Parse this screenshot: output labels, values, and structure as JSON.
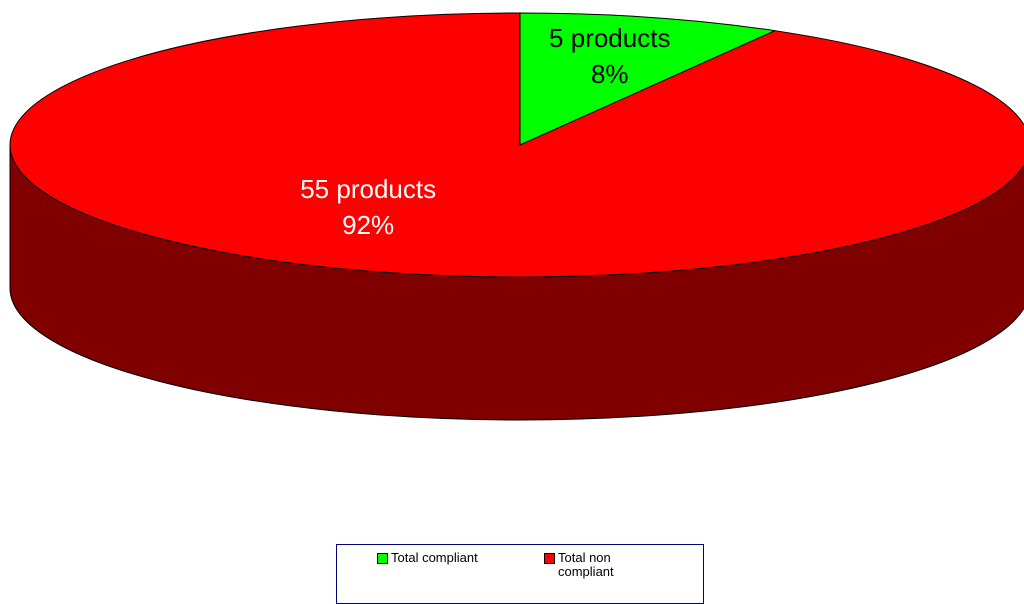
{
  "chart_data": {
    "type": "pie3d",
    "categories": [
      "Total compliant",
      "Total non compliant"
    ],
    "values": [
      5,
      55
    ],
    "value_labels": [
      "5 products",
      "55 products"
    ],
    "percents": [
      8,
      92
    ],
    "percent_labels": [
      "8%",
      "92%"
    ],
    "colors": [
      "#00ff00",
      "#ff0000"
    ],
    "legend": "bottom"
  }
}
